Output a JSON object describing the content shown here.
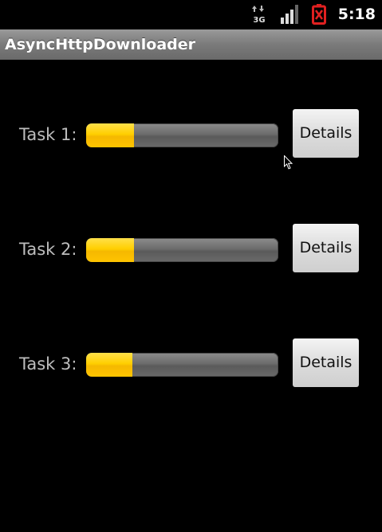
{
  "status_bar": {
    "time": "5:18",
    "network_label": "3G",
    "icons": [
      "data-3g-icon",
      "signal-icon",
      "battery-alert-icon"
    ],
    "battery_color": "#e02020"
  },
  "app": {
    "title": "AsyncHttpDownloader"
  },
  "tasks": [
    {
      "label": "Task 1:",
      "progress": 0.25,
      "button_label": "Details"
    },
    {
      "label": "Task 2:",
      "progress": 0.25,
      "button_label": "Details"
    },
    {
      "label": "Task 3:",
      "progress": 0.24,
      "button_label": "Details"
    }
  ],
  "colors": {
    "progress_fill": "#ffc400",
    "progress_track": "#6c6c6c",
    "background": "#000000"
  }
}
